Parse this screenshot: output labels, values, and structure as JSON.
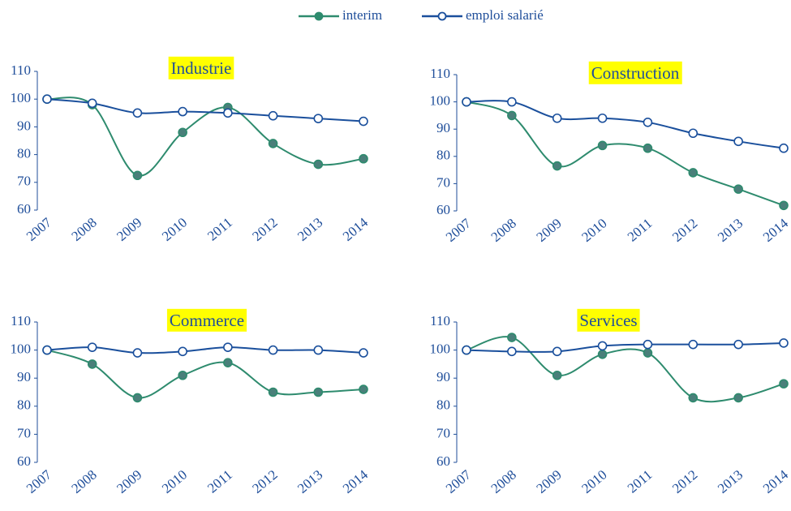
{
  "chart_data": [
    {
      "type": "line",
      "title": "Industrie",
      "categories": [
        "2007",
        "2008",
        "2009",
        "2010",
        "2011",
        "2012",
        "2013",
        "2014"
      ],
      "series": [
        {
          "name": "interim",
          "color": "#2e8b6e",
          "values": [
            100,
            98,
            72.5,
            88,
            97,
            84,
            76.5,
            78.5
          ]
        },
        {
          "name": "emploi salarié",
          "color": "#1a4f9c",
          "values": [
            100,
            98.5,
            95,
            95.5,
            95,
            94,
            93,
            92
          ]
        }
      ],
      "ylim": [
        60,
        110
      ],
      "yticks": [
        60,
        70,
        80,
        90,
        100,
        110
      ]
    },
    {
      "type": "line",
      "title": "Construction",
      "categories": [
        "2007",
        "2008",
        "2009",
        "2010",
        "2011",
        "2012",
        "2013",
        "2014"
      ],
      "series": [
        {
          "name": "interim",
          "color": "#2e8b6e",
          "values": [
            100,
            95,
            76.5,
            84,
            83,
            74,
            68,
            62
          ]
        },
        {
          "name": "emploi salarié",
          "color": "#1a4f9c",
          "values": [
            100,
            100,
            94,
            94,
            92.5,
            88.5,
            85.5,
            83
          ]
        }
      ],
      "ylim": [
        60,
        110
      ],
      "yticks": [
        60,
        70,
        80,
        90,
        100,
        110
      ]
    },
    {
      "type": "line",
      "title": "Commerce",
      "categories": [
        "2007",
        "2008",
        "2009",
        "2010",
        "2011",
        "2012",
        "2013",
        "2014"
      ],
      "series": [
        {
          "name": "interim",
          "color": "#2e8b6e",
          "values": [
            100,
            95,
            83,
            91,
            95.5,
            85,
            85,
            86
          ]
        },
        {
          "name": "emploi salarié",
          "color": "#1a4f9c",
          "values": [
            100,
            101,
            99,
            99.5,
            101,
            100,
            100,
            99
          ]
        }
      ],
      "ylim": [
        60,
        110
      ],
      "yticks": [
        60,
        70,
        80,
        90,
        100,
        110
      ]
    },
    {
      "type": "line",
      "title": "Services",
      "categories": [
        "2007",
        "2008",
        "2009",
        "2010",
        "2011",
        "2012",
        "2013",
        "2014"
      ],
      "series": [
        {
          "name": "interim",
          "color": "#2e8b6e",
          "values": [
            100,
            104.5,
            91,
            98.5,
            99,
            83,
            83,
            88
          ]
        },
        {
          "name": "emploi salarié",
          "color": "#1a4f9c",
          "values": [
            100,
            99.5,
            99.5,
            101.5,
            102,
            102,
            102,
            102.5
          ]
        }
      ],
      "ylim": [
        60,
        110
      ],
      "yticks": [
        60,
        70,
        80,
        90,
        100,
        110
      ]
    }
  ]
}
